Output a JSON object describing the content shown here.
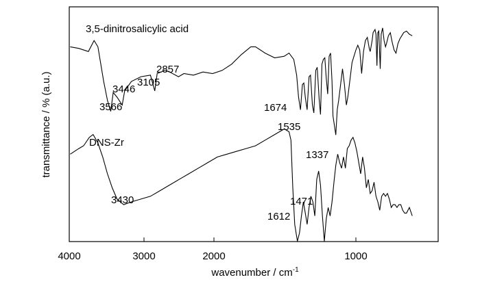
{
  "chart_data": {
    "type": "line",
    "title": "",
    "xlabel": "wavenumber / cm",
    "xlabel_superscript": "-1",
    "ylabel": "transmittance / % (a.u.)",
    "xlim": [
      4000,
      400
    ],
    "x_reversed": true,
    "x_ticks": [
      4000,
      3000,
      2000,
      1000
    ],
    "y_ticks_shown": false,
    "grid": false,
    "series": [
      {
        "name": "3,5-dinitrosalicylic acid",
        "curve": [
          [
            3990,
            0.62
          ],
          [
            3900,
            0.61
          ],
          [
            3800,
            0.59
          ],
          [
            3740,
            0.66
          ],
          [
            3700,
            0.62
          ],
          [
            3640,
            0.4
          ],
          [
            3600,
            0.28
          ],
          [
            3566,
            0.21
          ],
          [
            3540,
            0.33
          ],
          [
            3500,
            0.3
          ],
          [
            3446,
            0.25
          ],
          [
            3420,
            0.34
          ],
          [
            3350,
            0.4
          ],
          [
            3250,
            0.43
          ],
          [
            3150,
            0.44
          ],
          [
            3105,
            0.34
          ],
          [
            3080,
            0.45
          ],
          [
            3000,
            0.47
          ],
          [
            2950,
            0.46
          ],
          [
            2857,
            0.43
          ],
          [
            2800,
            0.45
          ],
          [
            2700,
            0.44
          ],
          [
            2600,
            0.46
          ],
          [
            2500,
            0.45
          ],
          [
            2400,
            0.47
          ],
          [
            2300,
            0.51
          ],
          [
            2200,
            0.57
          ],
          [
            2100,
            0.62
          ],
          [
            2050,
            0.62
          ],
          [
            1950,
            0.58
          ],
          [
            1850,
            0.55
          ],
          [
            1750,
            0.56
          ],
          [
            1700,
            0.58
          ],
          [
            1650,
            0.54
          ],
          [
            1620,
            0.44
          ],
          [
            1600,
            0.3
          ],
          [
            1580,
            0.22
          ],
          [
            1560,
            0.38
          ],
          [
            1545,
            0.39
          ],
          [
            1530,
            0.3
          ],
          [
            1510,
            0.22
          ],
          [
            1490,
            0.43
          ],
          [
            1475,
            0.44
          ],
          [
            1455,
            0.25
          ],
          [
            1440,
            0.2
          ],
          [
            1420,
            0.47
          ],
          [
            1405,
            0.49
          ],
          [
            1385,
            0.29
          ],
          [
            1370,
            0.19
          ],
          [
            1355,
            0.51
          ],
          [
            1340,
            0.54
          ],
          [
            1325,
            0.55
          ],
          [
            1310,
            0.42
          ],
          [
            1295,
            0.32
          ],
          [
            1280,
            0.56
          ],
          [
            1265,
            0.58
          ],
          [
            1250,
            0.4
          ],
          [
            1240,
            0.18
          ],
          [
            1225,
            0.12
          ],
          [
            1210,
            0.06
          ],
          [
            1195,
            0.22
          ],
          [
            1180,
            0.28
          ],
          [
            1160,
            0.38
          ],
          [
            1140,
            0.48
          ],
          [
            1120,
            0.38
          ],
          [
            1100,
            0.25
          ],
          [
            1085,
            0.3
          ],
          [
            1060,
            0.42
          ],
          [
            1040,
            0.52
          ],
          [
            1020,
            0.56
          ],
          [
            1000,
            0.6
          ],
          [
            980,
            0.63
          ],
          [
            960,
            0.6
          ],
          [
            940,
            0.45
          ],
          [
            920,
            0.59
          ],
          [
            900,
            0.66
          ],
          [
            880,
            0.68
          ],
          [
            860,
            0.61
          ],
          [
            850,
            0.59
          ],
          [
            830,
            0.66
          ],
          [
            820,
            0.71
          ],
          [
            800,
            0.73
          ],
          [
            790,
            0.7
          ],
          [
            780,
            0.5
          ],
          [
            770,
            0.71
          ],
          [
            760,
            0.72
          ],
          [
            745,
            0.48
          ],
          [
            735,
            0.7
          ],
          [
            720,
            0.74
          ],
          [
            705,
            0.66
          ],
          [
            690,
            0.62
          ],
          [
            680,
            0.64
          ],
          [
            660,
            0.69
          ],
          [
            640,
            0.71
          ],
          [
            620,
            0.65
          ],
          [
            600,
            0.6
          ],
          [
            580,
            0.58
          ],
          [
            560,
            0.64
          ],
          [
            540,
            0.67
          ],
          [
            520,
            0.69
          ],
          [
            500,
            0.71
          ],
          [
            470,
            0.72
          ],
          [
            440,
            0.7
          ],
          [
            410,
            0.69
          ]
        ],
        "annotations": [
          {
            "text": "3566",
            "x": 3566
          },
          {
            "text": "3446",
            "x": 3446
          },
          {
            "text": "3105",
            "x": 3105
          },
          {
            "text": "2857",
            "x": 2857
          },
          {
            "text": "1674",
            "x": 1674
          },
          {
            "text": "1535",
            "x": 1535
          },
          {
            "text": "1337",
            "x": 1337
          }
        ]
      },
      {
        "name": "DNS-Zr",
        "curve": [
          [
            3990,
            0.07
          ],
          [
            3900,
            0.09
          ],
          [
            3850,
            0.1
          ],
          [
            3790,
            0.13
          ],
          [
            3750,
            0.14
          ],
          [
            3700,
            0.11
          ],
          [
            3650,
            0.06
          ],
          [
            3600,
            0.0
          ],
          [
            3550,
            -0.05
          ],
          [
            3500,
            -0.09
          ],
          [
            3430,
            -0.11
          ],
          [
            3350,
            -0.1
          ],
          [
            3250,
            -0.09
          ],
          [
            3150,
            -0.08
          ],
          [
            3050,
            -0.06
          ],
          [
            2950,
            -0.04
          ],
          [
            2850,
            -0.02
          ],
          [
            2750,
            0.0
          ],
          [
            2650,
            0.02
          ],
          [
            2550,
            0.04
          ],
          [
            2450,
            0.06
          ],
          [
            2350,
            0.07
          ],
          [
            2250,
            0.08
          ],
          [
            2150,
            0.09
          ],
          [
            2050,
            0.1
          ],
          [
            1950,
            0.12
          ],
          [
            1850,
            0.14
          ],
          [
            1750,
            0.16
          ],
          [
            1700,
            0.15
          ],
          [
            1680,
            0.12
          ],
          [
            1660,
            -0.05
          ],
          [
            1640,
            -0.18
          ],
          [
            1612,
            -0.24
          ],
          [
            1590,
            -0.21
          ],
          [
            1570,
            -0.15
          ],
          [
            1550,
            -0.1
          ],
          [
            1530,
            -0.14
          ],
          [
            1510,
            -0.18
          ],
          [
            1490,
            -0.12
          ],
          [
            1471,
            -0.08
          ],
          [
            1450,
            -0.1
          ],
          [
            1430,
            -0.15
          ],
          [
            1410,
            -0.02
          ],
          [
            1390,
            0.01
          ],
          [
            1370,
            -0.04
          ],
          [
            1350,
            -0.15
          ],
          [
            1330,
            -0.24
          ],
          [
            1310,
            -0.16
          ],
          [
            1290,
            -0.12
          ],
          [
            1270,
            -0.15
          ],
          [
            1250,
            -0.1
          ],
          [
            1230,
            -0.03
          ],
          [
            1210,
            0.03
          ],
          [
            1190,
            0.07
          ],
          [
            1170,
            0.04
          ],
          [
            1150,
            0.02
          ],
          [
            1130,
            0.06
          ],
          [
            1110,
            0.02
          ],
          [
            1090,
            0.09
          ],
          [
            1070,
            0.1
          ],
          [
            1050,
            0.12
          ],
          [
            1030,
            0.13
          ],
          [
            1010,
            0.11
          ],
          [
            990,
            0.08
          ],
          [
            970,
            0.04
          ],
          [
            950,
            0.0
          ],
          [
            930,
            0.06
          ],
          [
            910,
            0.02
          ],
          [
            890,
            -0.05
          ],
          [
            870,
            -0.02
          ],
          [
            850,
            -0.07
          ],
          [
            830,
            -0.06
          ],
          [
            810,
            -0.03
          ],
          [
            790,
            -0.08
          ],
          [
            770,
            -0.1
          ],
          [
            750,
            -0.13
          ],
          [
            730,
            -0.08
          ],
          [
            710,
            -0.07
          ],
          [
            690,
            -0.08
          ],
          [
            670,
            -0.07
          ],
          [
            650,
            -0.09
          ],
          [
            630,
            -0.12
          ],
          [
            610,
            -0.11
          ],
          [
            590,
            -0.11
          ],
          [
            570,
            -0.12
          ],
          [
            550,
            -0.11
          ],
          [
            530,
            -0.11
          ],
          [
            510,
            -0.13
          ],
          [
            490,
            -0.14
          ],
          [
            470,
            -0.14
          ],
          [
            440,
            -0.12
          ],
          [
            410,
            -0.15
          ]
        ],
        "annotations": [
          {
            "text": "3430",
            "x": 3430
          },
          {
            "text": "1612",
            "x": 1612
          },
          {
            "text": "1471",
            "x": 1471
          }
        ]
      }
    ]
  }
}
